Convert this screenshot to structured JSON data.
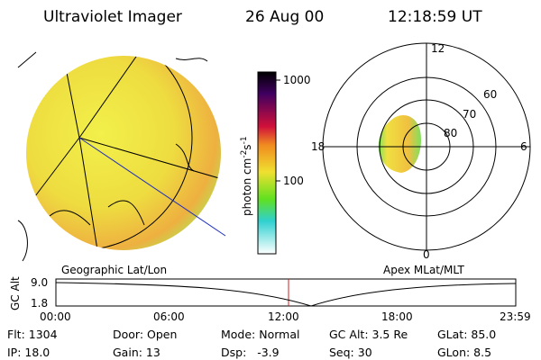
{
  "header": {
    "instrument": "Ultraviolet Imager",
    "date": "26 Aug 00",
    "time": "12:18:59 UT"
  },
  "colorbar": {
    "unit": {
      "base": "photon cm",
      "exp1": "-2",
      "mid": "s",
      "exp2": "-1"
    },
    "ticks": [
      "1000",
      "100"
    ]
  },
  "polar": {
    "mlt_labels": [
      "12",
      "18",
      "6",
      "0"
    ],
    "lat_labels": [
      "60",
      "70",
      "80"
    ]
  },
  "panels": {
    "left": "Geographic Lat/Lon",
    "right": "Apex MLat/MLT"
  },
  "altitude": {
    "axis_label": "GC Alt",
    "yticks": [
      "9.0",
      "1.8"
    ],
    "xticks": [
      "00:00",
      "06:00",
      "12:00",
      "18:00",
      "23:59"
    ]
  },
  "status": {
    "rows": [
      [
        "Flt: 1304",
        "Door: Open",
        "Mode: Normal",
        "GC Alt: 3.5 Re",
        "GLat: 85.0"
      ],
      [
        "IP: 18.0",
        "Gain: 13",
        "Dsp:   -3.9",
        "Seq: 30",
        "GLon: 8.5"
      ]
    ]
  }
}
